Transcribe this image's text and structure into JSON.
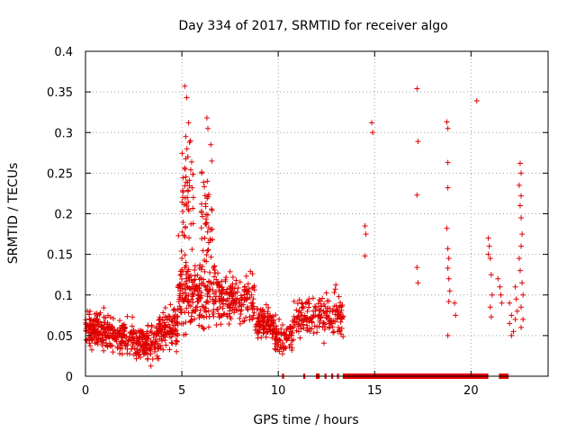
{
  "chart_data": {
    "type": "scatter",
    "title": "Day 334 of 2017, SRMTID for receiver algo",
    "xlabel": "GPS time / hours",
    "ylabel": "SRMTID / TECUs",
    "xlim": [
      0,
      24
    ],
    "ylim": [
      0,
      0.4
    ],
    "x_ticks": [
      0,
      5,
      10,
      15,
      20
    ],
    "y_ticks": [
      0,
      0.05,
      0.1,
      0.15,
      0.2,
      0.25,
      0.3,
      0.35,
      0.4
    ],
    "x_tick_labels": [
      "0",
      "5",
      "10",
      "15",
      "20"
    ],
    "y_tick_labels": [
      "0",
      "0.05",
      "0.1",
      "0.15",
      "0.2",
      "0.25",
      "0.3",
      "0.35",
      "0.4"
    ],
    "grid": true,
    "marker": "+",
    "series_color": "#e00000",
    "series": [
      {
        "name": "SRMTID",
        "segments": [
          {
            "x_start": 0.0,
            "x_end": 1.0,
            "y_center": 0.055,
            "spread": 0.025,
            "count": 120
          },
          {
            "x_start": 1.0,
            "x_end": 2.5,
            "y_center": 0.05,
            "spread": 0.022,
            "count": 140
          },
          {
            "x_start": 2.5,
            "x_end": 3.8,
            "y_center": 0.04,
            "spread": 0.022,
            "count": 130
          },
          {
            "x_start": 3.8,
            "x_end": 4.8,
            "y_center": 0.06,
            "spread": 0.025,
            "count": 110
          },
          {
            "x_start": 4.8,
            "x_end": 5.3,
            "y_center": 0.11,
            "spread": 0.05,
            "count": 60
          },
          {
            "x_start": 5.0,
            "x_end": 5.6,
            "y_center": 0.22,
            "spread": 0.07,
            "count": 45
          },
          {
            "x_start": 5.3,
            "x_end": 6.0,
            "y_center": 0.1,
            "spread": 0.04,
            "count": 80
          },
          {
            "x_start": 6.0,
            "x_end": 6.6,
            "y_center": 0.19,
            "spread": 0.06,
            "count": 40
          },
          {
            "x_start": 6.0,
            "x_end": 7.0,
            "y_center": 0.1,
            "spread": 0.04,
            "count": 90
          },
          {
            "x_start": 7.0,
            "x_end": 8.8,
            "y_center": 0.095,
            "spread": 0.03,
            "count": 150
          },
          {
            "x_start": 8.8,
            "x_end": 9.8,
            "y_center": 0.065,
            "spread": 0.02,
            "count": 100
          },
          {
            "x_start": 9.8,
            "x_end": 10.8,
            "y_center": 0.05,
            "spread": 0.02,
            "count": 80
          },
          {
            "x_start": 10.8,
            "x_end": 11.8,
            "y_center": 0.075,
            "spread": 0.025,
            "count": 70
          },
          {
            "x_start": 11.8,
            "x_end": 13.4,
            "y_center": 0.075,
            "spread": 0.03,
            "count": 110
          }
        ],
        "points": [
          [
            5.15,
            0.357
          ],
          [
            5.25,
            0.343
          ],
          [
            5.35,
            0.312
          ],
          [
            5.2,
            0.295
          ],
          [
            5.4,
            0.288
          ],
          [
            6.3,
            0.318
          ],
          [
            6.35,
            0.305
          ],
          [
            6.5,
            0.285
          ],
          [
            6.55,
            0.265
          ],
          [
            14.5,
            0.185
          ],
          [
            14.55,
            0.175
          ],
          [
            14.5,
            0.148
          ],
          [
            14.85,
            0.312
          ],
          [
            14.9,
            0.3
          ],
          [
            17.2,
            0.354
          ],
          [
            17.25,
            0.289
          ],
          [
            17.2,
            0.223
          ],
          [
            17.2,
            0.134
          ],
          [
            17.25,
            0.115
          ],
          [
            18.75,
            0.313
          ],
          [
            18.8,
            0.305
          ],
          [
            18.8,
            0.263
          ],
          [
            18.8,
            0.232
          ],
          [
            18.75,
            0.182
          ],
          [
            18.8,
            0.157
          ],
          [
            18.85,
            0.145
          ],
          [
            18.8,
            0.133
          ],
          [
            18.85,
            0.12
          ],
          [
            18.9,
            0.105
          ],
          [
            18.85,
            0.092
          ],
          [
            18.8,
            0.05
          ],
          [
            19.15,
            0.09
          ],
          [
            19.2,
            0.075
          ],
          [
            20.3,
            0.339
          ],
          [
            20.9,
            0.17
          ],
          [
            20.95,
            0.16
          ],
          [
            20.9,
            0.15
          ],
          [
            21.0,
            0.145
          ],
          [
            21.05,
            0.125
          ],
          [
            21.1,
            0.1
          ],
          [
            21.0,
            0.085
          ],
          [
            21.05,
            0.073
          ],
          [
            21.4,
            0.12
          ],
          [
            21.5,
            0.11
          ],
          [
            21.55,
            0.1
          ],
          [
            21.6,
            0.09
          ],
          [
            22.0,
            0.09
          ],
          [
            22.1,
            0.075
          ],
          [
            22.0,
            0.065
          ],
          [
            22.2,
            0.055
          ],
          [
            22.1,
            0.05
          ],
          [
            22.3,
            0.11
          ],
          [
            22.35,
            0.095
          ],
          [
            22.4,
            0.08
          ],
          [
            22.3,
            0.07
          ],
          [
            22.55,
            0.262
          ],
          [
            22.6,
            0.25
          ],
          [
            22.5,
            0.235
          ],
          [
            22.6,
            0.222
          ],
          [
            22.55,
            0.21
          ],
          [
            22.6,
            0.195
          ],
          [
            22.65,
            0.175
          ],
          [
            22.6,
            0.16
          ],
          [
            22.5,
            0.145
          ],
          [
            22.55,
            0.13
          ],
          [
            22.65,
            0.115
          ],
          [
            22.7,
            0.1
          ],
          [
            22.6,
            0.085
          ],
          [
            22.7,
            0.07
          ],
          [
            22.6,
            0.06
          ]
        ],
        "zero_ranges": [
          [
            10.2,
            10.3
          ],
          [
            11.3,
            11.4
          ],
          [
            11.95,
            12.15
          ],
          [
            12.4,
            12.5
          ],
          [
            12.75,
            12.85
          ],
          [
            13.05,
            13.15
          ],
          [
            13.35,
            20.9
          ],
          [
            21.45,
            21.95
          ]
        ]
      }
    ]
  }
}
